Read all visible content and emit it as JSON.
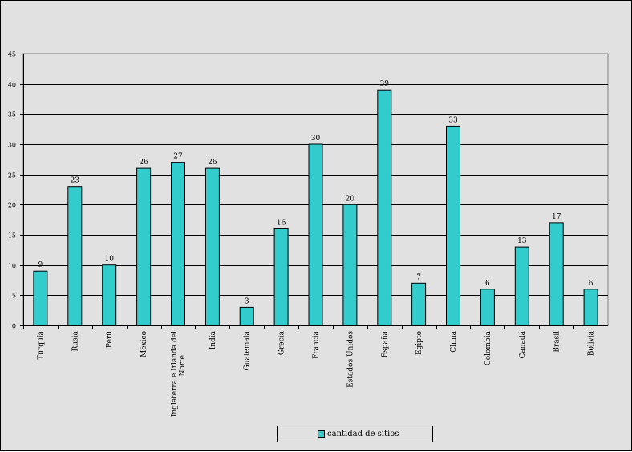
{
  "chart_data": {
    "type": "bar",
    "categories": [
      "Turquía",
      "Rusia",
      "Perú",
      "México",
      "Inglaterra e Irlanda del Norte",
      "India",
      "Guatemala",
      "Grecia",
      "Francia",
      "Estados Unidos",
      "España",
      "Egipto",
      "China",
      "Colombia",
      "Canadá",
      "Brasil",
      "Bolivia"
    ],
    "series": [
      {
        "name": "cantidad de sitios",
        "values": [
          9,
          23,
          10,
          26,
          27,
          26,
          3,
          16,
          30,
          20,
          39,
          7,
          33,
          6,
          13,
          17,
          6
        ]
      }
    ],
    "ylim": [
      0,
      45
    ],
    "yticks": [
      0,
      5,
      10,
      15,
      20,
      25,
      30,
      35,
      40,
      45
    ],
    "grid": true,
    "legend": "bottom-center",
    "colors": {
      "bar": "#33cccc",
      "plot_bg": "#e1e1e1",
      "grid": "#000000"
    },
    "title": "",
    "xlabel": "",
    "ylabel": ""
  }
}
